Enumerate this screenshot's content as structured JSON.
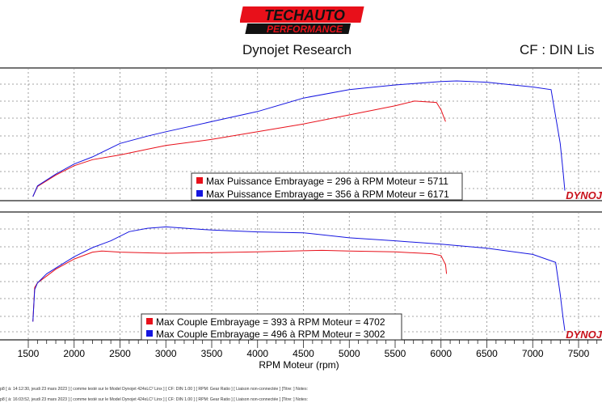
{
  "header": {
    "logo_line1": "TECHAUTO",
    "logo_line2": "PERFORMANCE",
    "dyno_brand": "Dynojet Research",
    "correction": "CF : DIN Lis"
  },
  "panels": {
    "top_watermark": "DYNOJ",
    "bottom_watermark": "DYNOJ"
  },
  "legend_top": [
    {
      "color": "#e8101a",
      "text": "Max Puissance Embrayage = 296 à RPM Moteur = 5711"
    },
    {
      "color": "#1515e0",
      "text": "Max Puissance Embrayage = 356 à RPM Moteur = 6171"
    }
  ],
  "legend_bottom": [
    {
      "color": "#e8101a",
      "text": "Max Couple Embrayage = 393 à RPM Moteur = 4702"
    },
    {
      "color": "#1515e0",
      "text": "Max Couple Embrayage = 496 à RPM Moteur = 3002"
    }
  ],
  "footer": [
    "p8 [ à: 14:12:30, jeudi 23 mars 2023 ] [ comme testé sur le Model Dynojet 424xLC² Linx ] [ CF: DIN 1.00 ] [ RPM: Gear Ratio ] [ Liaison non-connectée ] [Titre: ]  Notes:",
    "p8 [ à: 16:03:52, jeudi 23 mars 2023 ] [ comme testé sur le Model Dynojet 424xLC² Linx ] [ CF: DIN 1.00 ] [ RPM: Gear Ratio ] [ Liaison non-connectée ] [Titre: ]  Notes:"
  ],
  "chart_data": [
    {
      "type": "line",
      "xlabel": "RPM Moteur (rpm)",
      "x_ticks": [
        1500,
        2000,
        2500,
        3000,
        3500,
        4000,
        4500,
        5000,
        5500,
        6000,
        6500,
        7000,
        7500
      ],
      "xlim": [
        1475,
        7750
      ],
      "ylim": [
        0,
        380
      ],
      "series": [
        {
          "color": "#e8101a",
          "x": [
            1550,
            1600,
            1800,
            2000,
            2200,
            2500,
            2800,
            3000,
            3500,
            4000,
            4500,
            5000,
            5500,
            5711,
            5950,
            6000,
            6050
          ],
          "y": [
            12,
            42,
            76,
            104,
            122,
            136,
            153,
            164,
            182,
            205,
            228,
            255,
            282,
            296,
            292,
            270,
            235
          ]
        },
        {
          "color": "#1515e0",
          "x": [
            1550,
            1600,
            1800,
            2000,
            2200,
            2500,
            2800,
            3000,
            3500,
            4000,
            4500,
            5000,
            5500,
            6000,
            6171,
            6500,
            7000,
            7200,
            7300,
            7330,
            7350
          ],
          "y": [
            12,
            44,
            79,
            109,
            130,
            170,
            192,
            205,
            235,
            265,
            305,
            330,
            344,
            354,
            356,
            352,
            338,
            330,
            170,
            90,
            30
          ]
        }
      ]
    },
    {
      "type": "line",
      "xlabel": "RPM Moteur (rpm)",
      "x_ticks": [
        1500,
        2000,
        2500,
        3000,
        3500,
        4000,
        4500,
        5000,
        5500,
        6000,
        6500,
        7000,
        7500
      ],
      "xlim": [
        1475,
        7750
      ],
      "ylim": [
        0,
        540
      ],
      "series": [
        {
          "color": "#e8101a",
          "x": [
            1550,
            1570,
            1600,
            1700,
            1800,
            2000,
            2200,
            2300,
            2500,
            2800,
            3000,
            3500,
            4000,
            4500,
            4702,
            5000,
            5500,
            5900,
            6000,
            6050,
            6060
          ],
          "y": [
            80,
            230,
            250,
            280,
            310,
            355,
            385,
            390,
            385,
            382,
            380,
            383,
            386,
            391,
            393,
            390,
            386,
            378,
            370,
            330,
            290
          ]
        },
        {
          "color": "#1515e0",
          "x": [
            1550,
            1570,
            1600,
            1700,
            1800,
            2000,
            2200,
            2400,
            2600,
            2800,
            3002,
            3500,
            4000,
            4500,
            5000,
            5500,
            6000,
            6500,
            7000,
            7250,
            7300,
            7330,
            7350
          ],
          "y": [
            80,
            220,
            250,
            290,
            315,
            365,
            405,
            435,
            475,
            490,
            496,
            482,
            474,
            470,
            448,
            435,
            420,
            402,
            375,
            340,
            200,
            100,
            40
          ]
        }
      ]
    }
  ]
}
